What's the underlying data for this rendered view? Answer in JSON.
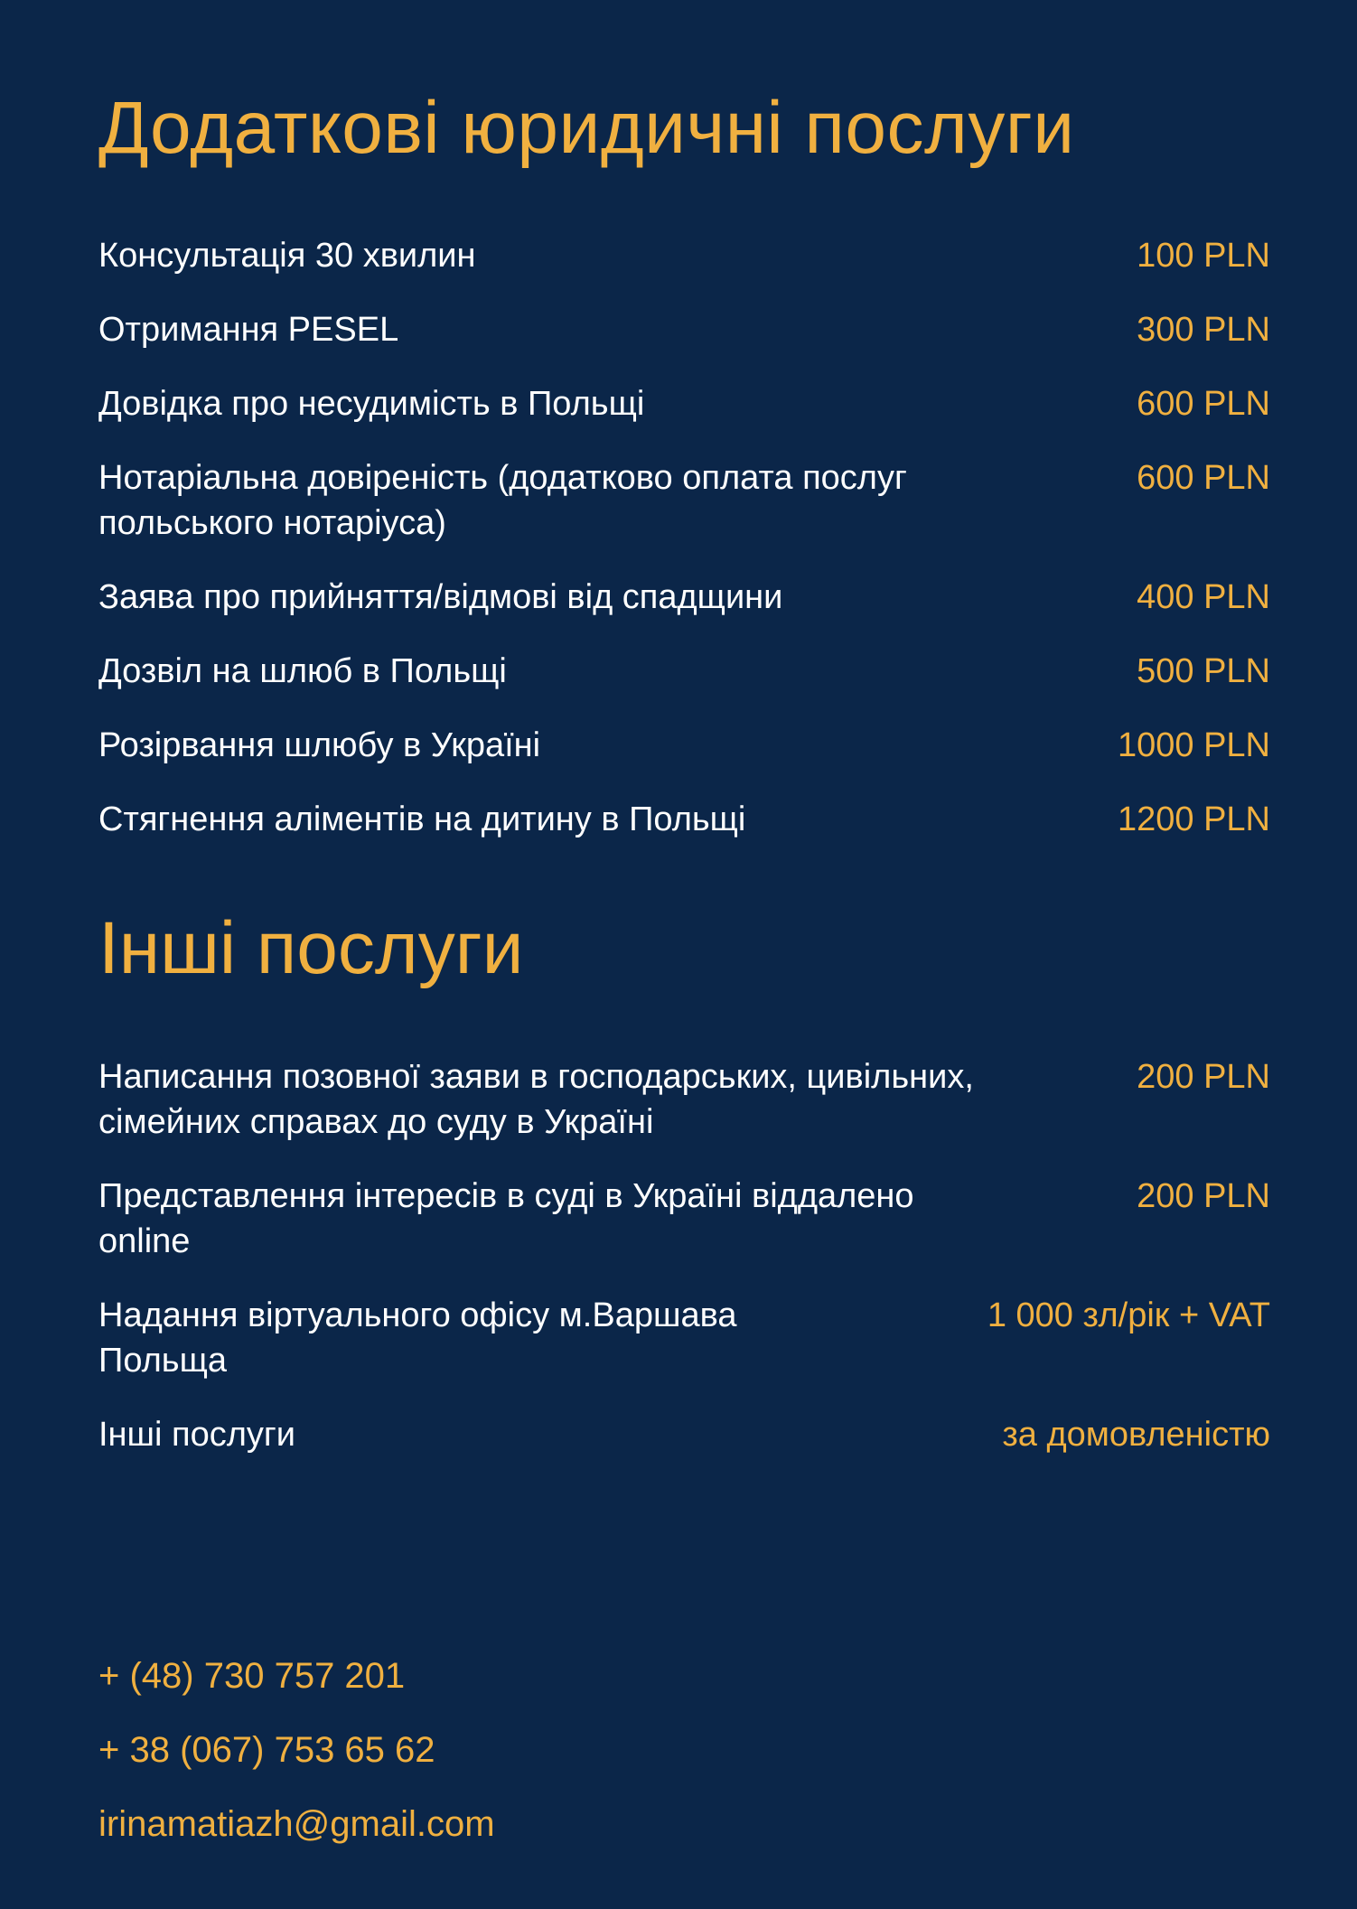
{
  "colors": {
    "background": "#0b2649",
    "accent": "#f0b040",
    "text": "#ffffff"
  },
  "section1": {
    "title": "Додаткові юридичні послуги",
    "items": [
      {
        "name": "Консультація 30 хвилин",
        "price": "100 PLN"
      },
      {
        "name": "Отримання PESEL",
        "price": "300 PLN"
      },
      {
        "name": "Довідка про несудимість в Польщі",
        "price": "600 PLN"
      },
      {
        "name": "Нотаріальна довіреність (додатково оплата послуг\nпольського нотаріуса)",
        "price": "600 PLN"
      },
      {
        "name": "Заява про прийняття/відмові від спадщини",
        "price": "400 PLN"
      },
      {
        "name": "Дозвіл на шлюб в Польщі",
        "price": "500 PLN"
      },
      {
        "name": "Розірвання шлюбу в Україні",
        "price": "1000 PLN"
      },
      {
        "name": "Стягнення аліментів на дитину в Польщі",
        "price": "1200 PLN"
      }
    ]
  },
  "section2": {
    "title": "Інші послуги",
    "items": [
      {
        "name": "Написання позовної заяви в господарських, цивільних,\nсімейних справах до суду в Україні",
        "price": "200 PLN"
      },
      {
        "name": "Представлення інтересів в суді в Україні віддалено\nonline",
        "price": "200 PLN"
      },
      {
        "name": "Надання віртуального офісу м.Варшава\nПольща",
        "price": "1 000 зл/рік + VAT"
      },
      {
        "name": "Інші послуги",
        "price": "за домовленістю"
      }
    ]
  },
  "contacts": {
    "phone_pl": "+ (48) 730 757 201",
    "phone_ua": "+ 38 (067) 753 65 62",
    "email": "irinamatiazh@gmail.com"
  }
}
